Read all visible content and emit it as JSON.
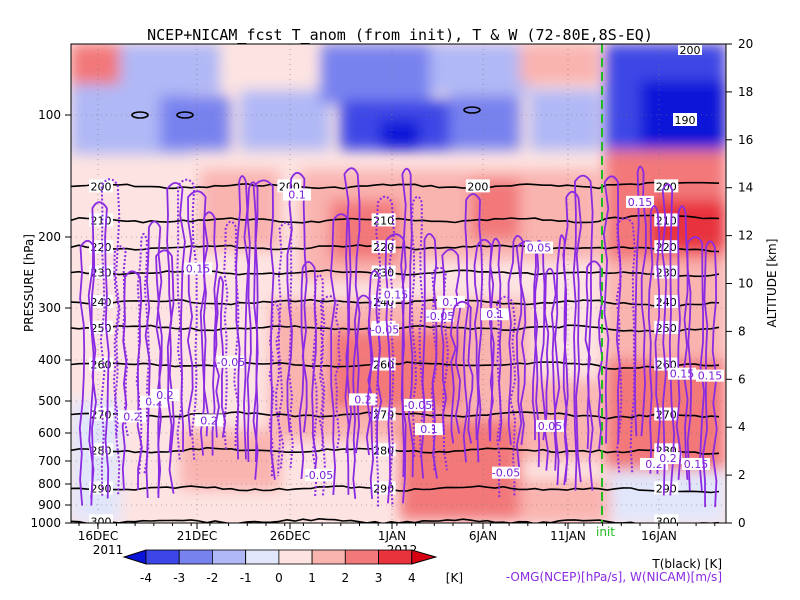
{
  "chart_data": {
    "type": "heatmap",
    "title": "NCEP+NICAM_fcst T_anom (from init), T & W  (72-80E,8S-EQ)",
    "ylabel_left": "PRESSURE [hPa]",
    "ylabel_right": "ALTITUDE [km]",
    "pressure_ticks": [
      100,
      200,
      300,
      400,
      500,
      600,
      700,
      800,
      900,
      1000
    ],
    "altitude_ticks": [
      0,
      2,
      4,
      6,
      8,
      10,
      12,
      14,
      16,
      18,
      20
    ],
    "x_ticks": [
      "16DEC",
      "21DEC",
      "26DEC",
      "1JAN",
      "6JAN",
      "11JAN",
      "16JAN"
    ],
    "x_year_labels": [
      {
        "after": "16DEC",
        "text": "2011"
      },
      {
        "after": "1JAN",
        "text": "2012"
      }
    ],
    "init_label": "init",
    "colorbar": {
      "ticks": [
        "-4",
        "-3",
        "-2",
        "-1",
        "0",
        "1",
        "2",
        "3",
        "4"
      ],
      "unit": "[K]",
      "colors": [
        "#0a14d8",
        "#3c46e6",
        "#7882ef",
        "#b0b8f6",
        "#e2e6fb",
        "#fde4e2",
        "#f9b4b0",
        "#f2787a",
        "#e8323c",
        "#d60012"
      ]
    },
    "legend_lines": [
      "T(black) [K]",
      "-OMG(NCEP)[hPa/s], W(NICAM)[m/s]"
    ],
    "temperature_isotherms": [
      {
        "T": 200,
        "p": 150,
        "labels": [
          "200",
          "200",
          "200",
          "200"
        ]
      },
      {
        "T": 210,
        "p": 182,
        "labels": [
          "210",
          "210",
          "210"
        ]
      },
      {
        "T": 220,
        "p": 212,
        "labels": [
          "220",
          "220",
          "220"
        ]
      },
      {
        "T": 230,
        "p": 245,
        "labels": [
          "230",
          "230",
          "230"
        ]
      },
      {
        "T": 240,
        "p": 290,
        "labels": [
          "240",
          "240",
          "240"
        ]
      },
      {
        "T": 250,
        "p": 335,
        "labels": [
          "250",
          "250",
          "250"
        ]
      },
      {
        "T": 260,
        "p": 410,
        "labels": [
          "260",
          "260",
          "260"
        ]
      },
      {
        "T": 270,
        "p": 540,
        "labels": [
          "270",
          "270",
          "270"
        ]
      },
      {
        "T": 280,
        "p": 660,
        "labels": [
          "280",
          "280",
          "280"
        ]
      },
      {
        "T": 290,
        "p": 820,
        "labels": [
          "290",
          "290",
          "290"
        ]
      },
      {
        "T": 300,
        "p": 990,
        "labels": [
          "300",
          "300"
        ]
      }
    ],
    "upper_labels": [
      "190",
      "200"
    ],
    "w_contour_labels": [
      "0.05",
      "0.1",
      "0.15",
      "0.2",
      "-0.05"
    ],
    "anomaly_field": {
      "description_units": "K",
      "columns_days_from_start": [
        0,
        5,
        10,
        15,
        20,
        25,
        30,
        33.5,
        35,
        40
      ],
      "rows_pressure_hPa": [
        60,
        100,
        150,
        200,
        300,
        400,
        500,
        700,
        850,
        1000
      ]
    }
  }
}
